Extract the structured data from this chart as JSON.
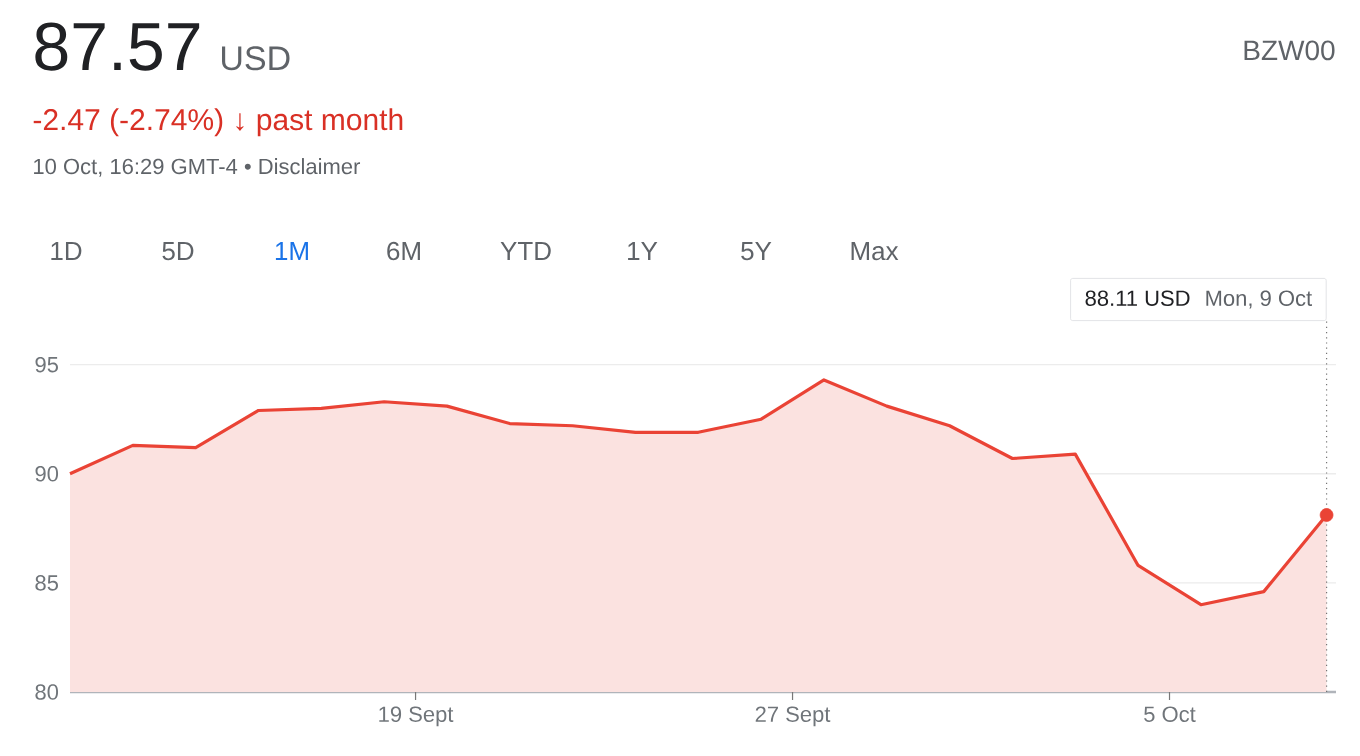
{
  "chart_data": {
    "type": "area",
    "title": "87.57",
    "subtitle": "-2.47 (-2.74%) ↓ past month",
    "annotations": [
      "USD",
      "BZW00",
      "10 Oct, 16:29 GMT-4 • Disclaimer",
      "1D",
      "5D",
      "1M",
      "6M",
      "YTD",
      "1Y",
      "5Y",
      "Max",
      "88.11 USD",
      "Mon, 9 Oct",
      "19 Sept",
      "27 Sept",
      "5 Oct"
    ],
    "categories": [
      null,
      null,
      null,
      null,
      null,
      null,
      null,
      null,
      null,
      null,
      null,
      null,
      null,
      null,
      null,
      null,
      null,
      null,
      null,
      null,
      null
    ],
    "series": [
      {
        "color": "#ea4335",
        "values": [
          90.0,
          91.3,
          91.2,
          92.9,
          93.0,
          93.3,
          93.1,
          92.3,
          92.2,
          91.9,
          91.9,
          92.5,
          94.3,
          93.1,
          92.2,
          90.7,
          90.9,
          85.8,
          84.0,
          84.6,
          88.11
        ]
      },
      {
        "type": "scatter",
        "color": "#ea4335",
        "marker": "circle",
        "values": [
          null,
          null,
          null,
          null,
          null,
          null,
          null,
          null,
          null,
          null,
          null,
          null,
          null,
          null,
          null,
          null,
          null,
          null,
          null,
          null,
          88.11
        ]
      }
    ],
    "ylim": [
      80,
      97
    ],
    "yticks": [
      80,
      85,
      90,
      95
    ],
    "grid": "y",
    "legend": false
  }
}
